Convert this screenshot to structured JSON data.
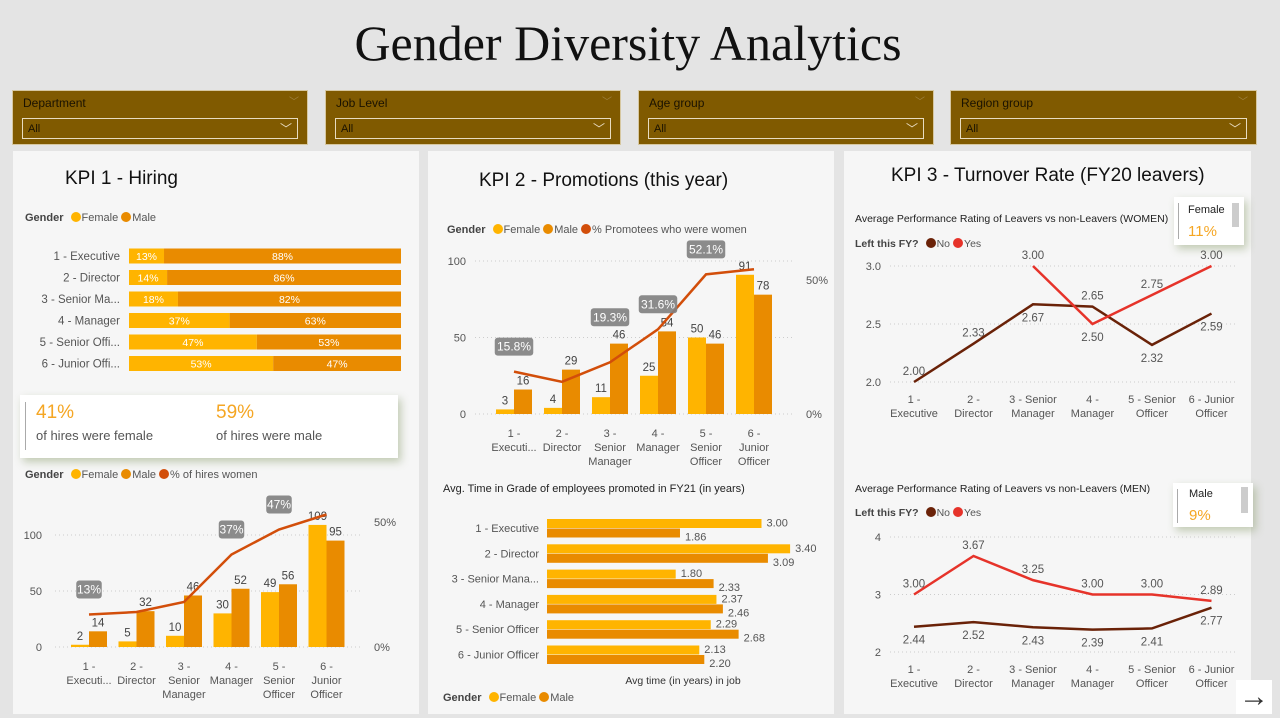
{
  "title": "Gender Diversity Analytics",
  "slicers": [
    {
      "label": "Department",
      "value": "All"
    },
    {
      "label": "Job Level",
      "value": "All"
    },
    {
      "label": "Age group",
      "value": "All"
    },
    {
      "label": "Region group",
      "value": "All"
    }
  ],
  "colors": {
    "female": "#ffb400",
    "male": "#e98b00",
    "pct_line": "#d24e0a",
    "no": "#6a2208",
    "yes": "#e6332a",
    "slicer_bg": "#805a00"
  },
  "kpi1": {
    "title": "KPI 1 - Hiring",
    "legend1": {
      "title": "Gender",
      "items": [
        "Female",
        "Male"
      ]
    },
    "cards": [
      {
        "value": "41%",
        "label": "of hires were female"
      },
      {
        "value": "59%",
        "label": "of hires were male"
      }
    ],
    "legend2": {
      "title": "Gender",
      "items": [
        "Female",
        "Male",
        "% of hires women"
      ]
    }
  },
  "kpi2": {
    "title": "KPI 2 - Promotions (this year)",
    "legend1": {
      "title": "Gender",
      "items": [
        "Female",
        "Male",
        "% Promotees who were women"
      ]
    },
    "subtitle": "Avg. Time in Grade of employees promoted in FY21 (in years)",
    "legend2": {
      "title": "Gender",
      "items": [
        "Female",
        "Male"
      ]
    }
  },
  "kpi3": {
    "title": "KPI 3 - Turnover Rate (FY20 leavers)",
    "women_title": "Average Performance Rating of Leavers vs non-Leavers (WOMEN)",
    "men_title": "Average Performance Rating of Leavers vs non-Leavers (MEN)",
    "legend": {
      "title": "Left this FY?",
      "items": [
        "No",
        "Yes"
      ]
    },
    "female_card": {
      "label": "Female",
      "value": "11%"
    },
    "male_card": {
      "label": "Male",
      "value": "9%"
    }
  },
  "chart_data": [
    {
      "type": "bar",
      "stacked": "100%",
      "orientation": "horizontal",
      "categories": [
        "1 - Executive",
        "2 - Director",
        "3 - Senior Ma...",
        "4 - Manager",
        "5 - Senior Offi...",
        "6 - Junior Offi..."
      ],
      "series": [
        {
          "name": "Female",
          "values": [
            13,
            14,
            18,
            37,
            47,
            53
          ],
          "labels": [
            "13%",
            "14%",
            "18%",
            "37%",
            "47%",
            "53%"
          ]
        },
        {
          "name": "Male",
          "values": [
            88,
            86,
            82,
            63,
            53,
            47
          ],
          "labels": [
            "88%",
            "86%",
            "82%",
            "63%",
            "53%",
            "47%"
          ]
        }
      ]
    },
    {
      "type": "bar+line",
      "categories": [
        "1 -\nExecuti...",
        "2 -\nDirector",
        "3 -\nSenior\nManager",
        "4 -\nManager",
        "5 -\nSenior\nOfficer",
        "6 -\nJunior\nOfficer"
      ],
      "series": [
        {
          "name": "Female",
          "values": [
            2,
            5,
            10,
            30,
            49,
            109
          ]
        },
        {
          "name": "Male",
          "values": [
            14,
            32,
            46,
            52,
            56,
            95
          ]
        }
      ],
      "line": {
        "name": "% of hires women",
        "values": [
          13,
          14,
          18,
          37,
          47,
          53
        ],
        "labels": [
          "13%",
          null,
          null,
          "37%",
          "47%",
          null
        ]
      },
      "y_ticks": [
        "0",
        "50",
        "100"
      ],
      "y_tick_values": [
        0,
        50,
        100
      ],
      "y2_ticks": [
        "0%",
        "50%"
      ],
      "y2_tick_values": [
        0,
        50
      ],
      "grid": true
    },
    {
      "type": "bar+line",
      "categories": [
        "1 -\nExecuti...",
        "2 -\nDirector",
        "3 -\nSenior\nManager",
        "4 -\nManager",
        "5 -\nSenior\nOfficer",
        "6 -\nJunior\nOfficer"
      ],
      "series": [
        {
          "name": "Female",
          "values": [
            3,
            4,
            11,
            25,
            50,
            91
          ]
        },
        {
          "name": "Male",
          "values": [
            16,
            29,
            46,
            54,
            46,
            78
          ]
        }
      ],
      "line": {
        "name": "% Promotees who were women",
        "values": [
          15.8,
          12,
          19.3,
          31.6,
          52.1,
          54
        ],
        "labels": [
          "15.8%",
          null,
          "19.3%",
          "31.6%",
          "52.1%",
          null
        ]
      },
      "y_ticks": [
        "0",
        "50",
        "100"
      ],
      "y_tick_values": [
        0,
        50,
        100
      ],
      "y2_ticks": [
        "0%",
        "50%"
      ],
      "y2_tick_values": [
        0,
        50
      ],
      "grid": true
    },
    {
      "type": "bar",
      "orientation": "horizontal",
      "categories": [
        "1 - Executive",
        "2 - Director",
        "3 - Senior Mana...",
        "4 - Manager",
        "5 - Senior Officer",
        "6 - Junior Officer"
      ],
      "series": [
        {
          "name": "Female",
          "values": [
            3.0,
            3.4,
            1.8,
            2.37,
            2.29,
            2.13
          ]
        },
        {
          "name": "Male",
          "values": [
            1.86,
            3.09,
            2.33,
            2.46,
            2.68,
            2.2
          ]
        }
      ],
      "xlabel": "Avg time (in years) in job"
    },
    {
      "type": "line",
      "categories": [
        "1 -\nExecutive",
        "2 -\nDirector",
        "3 - Senior\nManager",
        "4 -\nManager",
        "5 - Senior\nOfficer",
        "6 - Junior\nOfficer"
      ],
      "series": [
        {
          "name": "No",
          "values": [
            2.0,
            2.33,
            2.67,
            2.65,
            2.32,
            2.59
          ]
        },
        {
          "name": "Yes",
          "values": [
            null,
            null,
            3.0,
            2.5,
            2.75,
            3.0
          ]
        }
      ],
      "y_ticks": [
        "2.0",
        "2.5",
        "3.0"
      ],
      "y_tick_values": [
        2.0,
        2.5,
        3.0
      ],
      "ylim": [
        2.0,
        3.0
      ],
      "grid": true
    },
    {
      "type": "line",
      "categories": [
        "1 -\nExecutive",
        "2 -\nDirector",
        "3 - Senior\nManager",
        "4 -\nManager",
        "5 - Senior\nOfficer",
        "6 - Junior\nOfficer"
      ],
      "series": [
        {
          "name": "No",
          "values": [
            2.44,
            2.52,
            2.43,
            2.39,
            2.41,
            2.77
          ]
        },
        {
          "name": "Yes",
          "values": [
            3.0,
            3.67,
            3.25,
            3.0,
            3.0,
            2.89
          ]
        }
      ],
      "y_ticks": [
        "2",
        "3",
        "4"
      ],
      "y_tick_values": [
        2,
        3,
        4
      ],
      "ylim": [
        2,
        4
      ],
      "grid": true
    }
  ],
  "nav": {
    "next_icon": "arrow-right-icon",
    "next_glyph": "→"
  }
}
